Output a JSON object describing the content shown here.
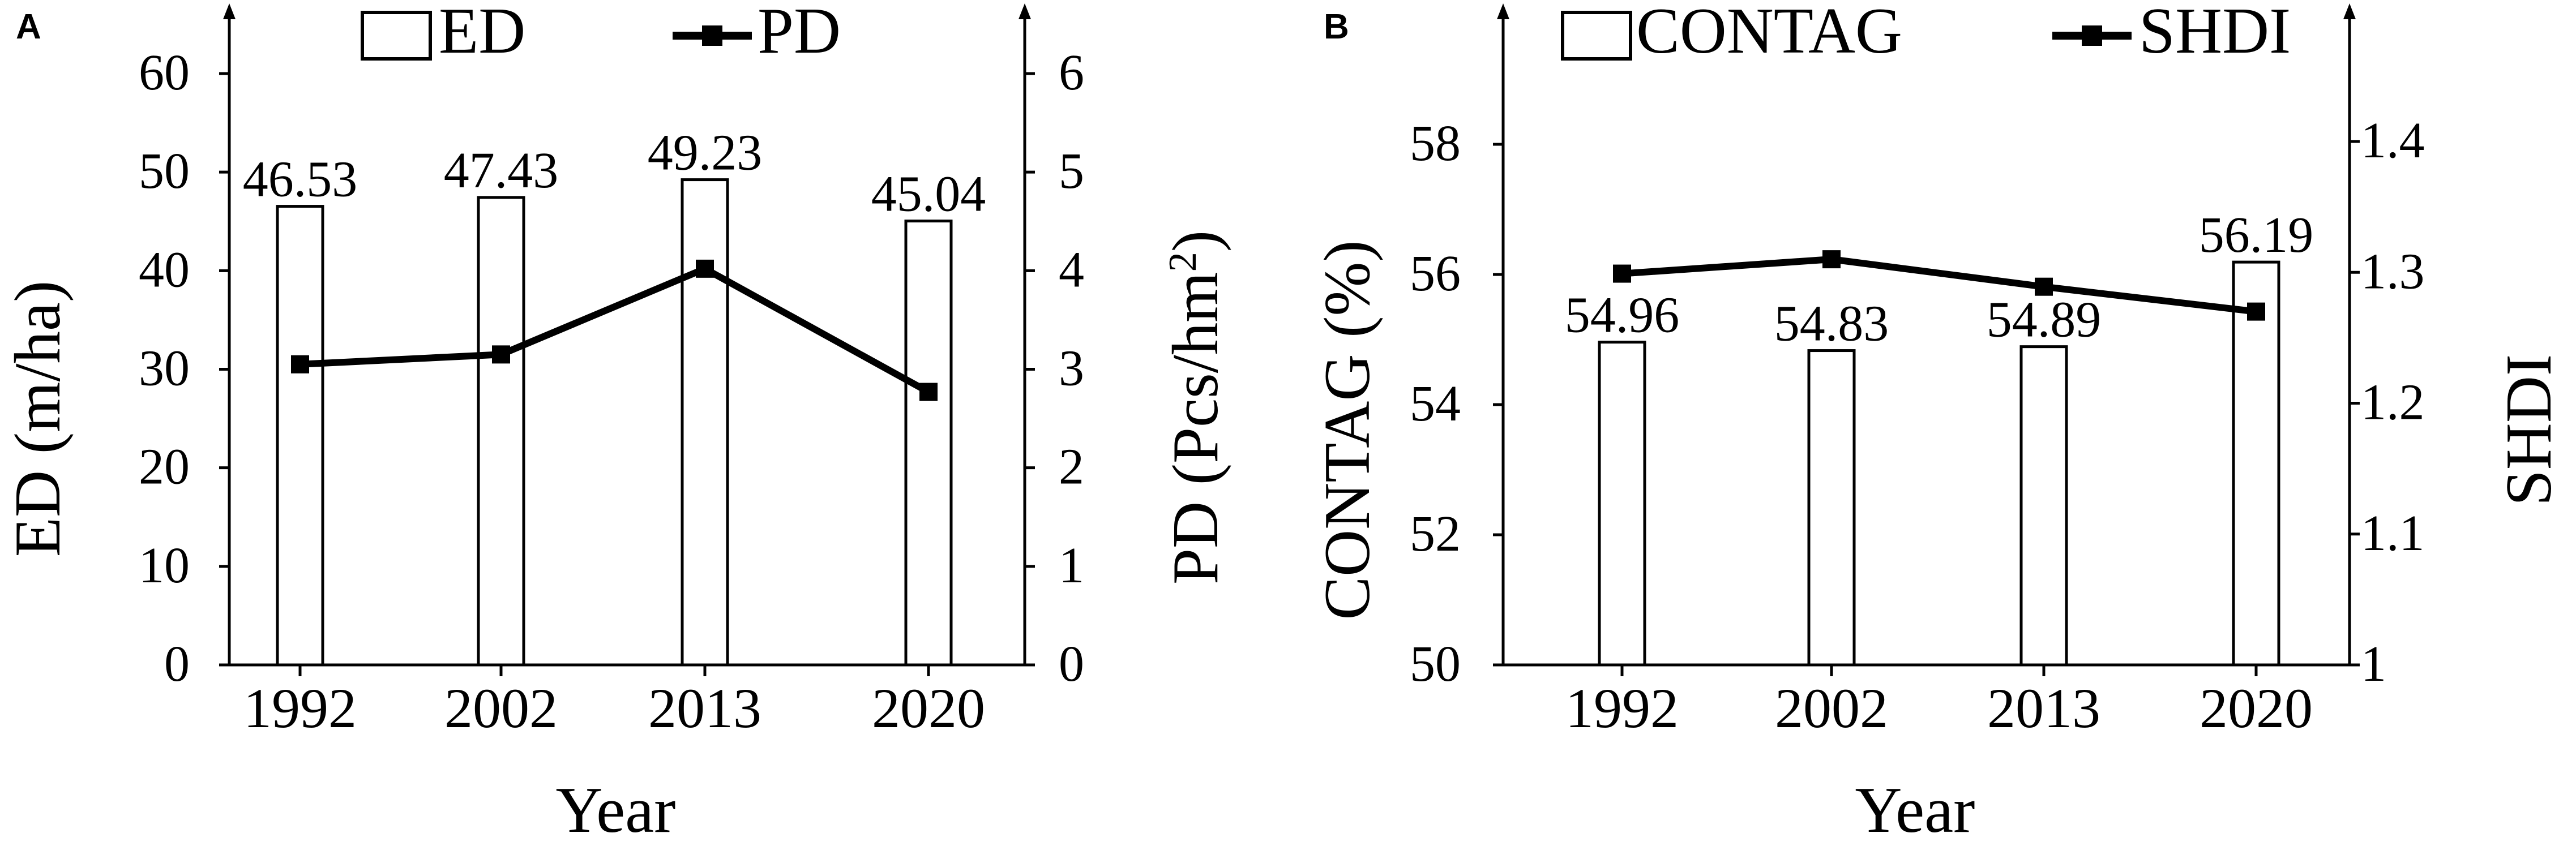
{
  "chart_data": [
    {
      "panel_label": "A",
      "type": "bar",
      "categories": [
        "1992",
        "2002",
        "2013",
        "2020"
      ],
      "xlabel": "Year",
      "ylabel": "ED (m/ha)",
      "y2label": "PD (Pcs/hm",
      "y2label_sup": "2",
      "y2label_close": ")",
      "ylim": [
        0,
        60
      ],
      "yticks": [
        "0",
        "10",
        "20",
        "30",
        "40",
        "50",
        "60"
      ],
      "y2lim": [
        0,
        6
      ],
      "y2ticks": [
        "0",
        "1",
        "2",
        "3",
        "4",
        "5",
        "6"
      ],
      "series": [
        {
          "name": "ED",
          "type": "bar",
          "axis": "left",
          "values": [
            46.53,
            47.43,
            49.23,
            45.04
          ],
          "labels": [
            "46.53",
            "47.43",
            "49.23",
            "45.04"
          ]
        },
        {
          "name": "PD",
          "type": "line",
          "axis": "right",
          "values": [
            3.05,
            3.15,
            4.02,
            2.77
          ]
        }
      ],
      "legend_position": "top"
    },
    {
      "panel_label": "B",
      "type": "bar",
      "categories": [
        "1992",
        "2002",
        "2013",
        "2020"
      ],
      "xlabel": "Year",
      "ylabel": "CONTAG (%)",
      "y2label": "SHDI",
      "ylim": [
        50,
        60
      ],
      "yticks": [
        "50",
        "52",
        "54",
        "56",
        "58"
      ],
      "y2lim": [
        1.0,
        1.5
      ],
      "y2ticks": [
        "1",
        "1.1",
        "1.2",
        "1.3",
        "1.4"
      ],
      "series": [
        {
          "name": "CONTAG",
          "type": "bar",
          "axis": "left",
          "values": [
            54.96,
            54.83,
            54.89,
            56.19
          ],
          "labels": [
            "54.96",
            "54.83",
            "54.89",
            "56.19"
          ]
        },
        {
          "name": "SHDI",
          "type": "line",
          "axis": "right",
          "values": [
            1.299,
            1.31,
            1.289,
            1.27
          ]
        }
      ],
      "legend_position": "top"
    }
  ]
}
